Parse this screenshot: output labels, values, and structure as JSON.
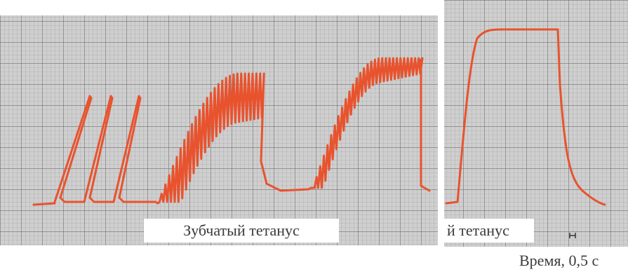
{
  "left_panel": {
    "label": "Зубчатый тетанус"
  },
  "right_panel": {
    "label": "й тетанус"
  },
  "time_label": "Время, 0,5 с"
}
